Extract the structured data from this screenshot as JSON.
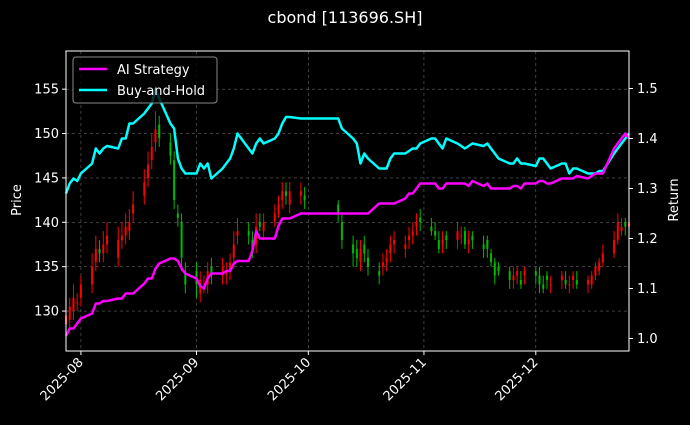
{
  "chart_data": {
    "type": "line",
    "title": "cbond [113696.SH]",
    "ylabel": "Price",
    "y2label": "Return",
    "xlim": [
      "2025-07-28",
      "2025-12-26"
    ],
    "ylim": [
      125.5,
      159.3
    ],
    "y2lim": [
      0.975,
      1.575
    ],
    "x_ticks": [
      "2025-08-01",
      "2025-09-01",
      "2025-10-01",
      "2025-11-01",
      "2025-12-01"
    ],
    "x_tick_labels": [
      "2025-08",
      "2025-09",
      "2025-10",
      "2025-11",
      "2025-12"
    ],
    "y_ticks": [
      130,
      135,
      140,
      145,
      150,
      155
    ],
    "y2_ticks": [
      1.0,
      1.1,
      1.2,
      1.3,
      1.4,
      1.5
    ],
    "y2_tick_labels": [
      "1.0",
      "1.1",
      "1.2",
      "1.3",
      "1.4",
      "1.5"
    ],
    "grid": true,
    "legend_position": "top-left",
    "colors": {
      "background": "#000000",
      "ai_strategy": "#ff00ff",
      "buy_and_hold": "#00ffff",
      "candle_up": "#ff0000",
      "candle_down": "#00bb00",
      "grid": "#666666",
      "text": "#ffffff"
    },
    "series": [
      {
        "name": "AI Strategy",
        "axis": "right",
        "x": [
          "2025-07-28",
          "2025-07-29",
          "2025-07-30",
          "2025-07-31",
          "2025-08-01",
          "2025-08-04",
          "2025-08-05",
          "2025-08-06",
          "2025-08-07",
          "2025-08-08",
          "2025-08-11",
          "2025-08-12",
          "2025-08-13",
          "2025-08-14",
          "2025-08-15",
          "2025-08-18",
          "2025-08-19",
          "2025-08-20",
          "2025-08-21",
          "2025-08-22",
          "2025-08-25",
          "2025-08-26",
          "2025-08-27",
          "2025-08-28",
          "2025-08-29",
          "2025-09-01",
          "2025-09-02",
          "2025-09-03",
          "2025-09-04",
          "2025-09-05",
          "2025-09-08",
          "2025-09-09",
          "2025-09-10",
          "2025-09-11",
          "2025-09-12",
          "2025-09-15",
          "2025-09-16",
          "2025-09-17",
          "2025-09-18",
          "2025-09-19",
          "2025-09-22",
          "2025-09-23",
          "2025-09-24",
          "2025-09-25",
          "2025-09-26",
          "2025-09-29",
          "2025-09-30",
          "2025-10-09",
          "2025-10-10",
          "2025-10-13",
          "2025-10-14",
          "2025-10-15",
          "2025-10-16",
          "2025-10-17",
          "2025-10-20",
          "2025-10-21",
          "2025-10-22",
          "2025-10-23",
          "2025-10-24",
          "2025-10-27",
          "2025-10-28",
          "2025-10-29",
          "2025-10-30",
          "2025-10-31",
          "2025-11-03",
          "2025-11-04",
          "2025-11-05",
          "2025-11-06",
          "2025-11-07",
          "2025-11-10",
          "2025-11-11",
          "2025-11-12",
          "2025-11-13",
          "2025-11-14",
          "2025-11-17",
          "2025-11-18",
          "2025-11-19",
          "2025-11-20",
          "2025-11-21",
          "2025-11-24",
          "2025-11-25",
          "2025-11-26",
          "2025-11-27",
          "2025-11-28",
          "2025-12-01",
          "2025-12-02",
          "2025-12-03",
          "2025-12-04",
          "2025-12-05",
          "2025-12-08",
          "2025-12-09",
          "2025-12-10",
          "2025-12-11",
          "2025-12-12",
          "2025-12-15",
          "2025-12-16",
          "2025-12-17",
          "2025-12-18",
          "2025-12-19",
          "2025-12-22",
          "2025-12-23",
          "2025-12-24",
          "2025-12-25",
          "2025-12-26"
        ],
        "values": [
          1.005,
          1.02,
          1.02,
          1.03,
          1.04,
          1.05,
          1.07,
          1.07,
          1.075,
          1.075,
          1.08,
          1.08,
          1.09,
          1.09,
          1.09,
          1.11,
          1.12,
          1.12,
          1.14,
          1.15,
          1.16,
          1.16,
          1.155,
          1.14,
          1.13,
          1.12,
          1.105,
          1.1,
          1.12,
          1.13,
          1.13,
          1.135,
          1.135,
          1.15,
          1.155,
          1.155,
          1.175,
          1.215,
          1.2,
          1.2,
          1.2,
          1.225,
          1.24,
          1.24,
          1.24,
          1.25,
          1.25,
          1.25,
          1.25,
          1.25,
          1.25,
          1.25,
          1.25,
          1.25,
          1.27,
          1.27,
          1.27,
          1.27,
          1.27,
          1.28,
          1.29,
          1.29,
          1.3,
          1.31,
          1.31,
          1.31,
          1.3,
          1.3,
          1.31,
          1.31,
          1.31,
          1.31,
          1.305,
          1.315,
          1.305,
          1.31,
          1.3,
          1.3,
          1.3,
          1.3,
          1.305,
          1.305,
          1.3,
          1.31,
          1.31,
          1.315,
          1.315,
          1.31,
          1.31,
          1.32,
          1.32,
          1.32,
          1.32,
          1.325,
          1.32,
          1.325,
          1.33,
          1.33,
          1.33,
          1.38,
          1.39,
          1.4,
          1.41,
          1.4
        ]
      },
      {
        "name": "Buy-and-Hold",
        "axis": "right",
        "x": [
          "2025-07-28",
          "2025-07-29",
          "2025-07-30",
          "2025-07-31",
          "2025-08-01",
          "2025-08-04",
          "2025-08-05",
          "2025-08-06",
          "2025-08-07",
          "2025-08-08",
          "2025-08-11",
          "2025-08-12",
          "2025-08-13",
          "2025-08-14",
          "2025-08-15",
          "2025-08-18",
          "2025-08-19",
          "2025-08-20",
          "2025-08-21",
          "2025-08-22",
          "2025-08-25",
          "2025-08-26",
          "2025-08-27",
          "2025-08-28",
          "2025-08-29",
          "2025-09-01",
          "2025-09-02",
          "2025-09-03",
          "2025-09-04",
          "2025-09-05",
          "2025-09-08",
          "2025-09-09",
          "2025-09-10",
          "2025-09-11",
          "2025-09-12",
          "2025-09-15",
          "2025-09-16",
          "2025-09-17",
          "2025-09-18",
          "2025-09-19",
          "2025-09-22",
          "2025-09-23",
          "2025-09-24",
          "2025-09-25",
          "2025-09-26",
          "2025-09-29",
          "2025-09-30",
          "2025-10-09",
          "2025-10-10",
          "2025-10-13",
          "2025-10-14",
          "2025-10-15",
          "2025-10-16",
          "2025-10-17",
          "2025-10-20",
          "2025-10-21",
          "2025-10-22",
          "2025-10-23",
          "2025-10-24",
          "2025-10-27",
          "2025-10-28",
          "2025-10-29",
          "2025-10-30",
          "2025-10-31",
          "2025-11-03",
          "2025-11-04",
          "2025-11-05",
          "2025-11-06",
          "2025-11-07",
          "2025-11-10",
          "2025-11-11",
          "2025-11-12",
          "2025-11-13",
          "2025-11-14",
          "2025-11-17",
          "2025-11-18",
          "2025-11-19",
          "2025-11-20",
          "2025-11-21",
          "2025-11-24",
          "2025-11-25",
          "2025-11-26",
          "2025-11-27",
          "2025-11-28",
          "2025-12-01",
          "2025-12-02",
          "2025-12-03",
          "2025-12-04",
          "2025-12-05",
          "2025-12-08",
          "2025-12-09",
          "2025-12-10",
          "2025-12-11",
          "2025-12-12",
          "2025-12-15",
          "2025-12-16",
          "2025-12-17",
          "2025-12-18",
          "2025-12-19",
          "2025-12-22",
          "2025-12-23",
          "2025-12-24",
          "2025-12-25",
          "2025-12-26"
        ],
        "values": [
          1.29,
          1.31,
          1.32,
          1.315,
          1.33,
          1.35,
          1.38,
          1.37,
          1.38,
          1.385,
          1.38,
          1.4,
          1.4,
          1.43,
          1.43,
          1.45,
          1.46,
          1.47,
          1.5,
          1.48,
          1.43,
          1.42,
          1.36,
          1.34,
          1.33,
          1.33,
          1.35,
          1.34,
          1.35,
          1.32,
          1.34,
          1.35,
          1.36,
          1.38,
          1.41,
          1.38,
          1.37,
          1.39,
          1.4,
          1.39,
          1.4,
          1.41,
          1.43,
          1.443,
          1.443,
          1.44,
          1.44,
          1.44,
          1.42,
          1.4,
          1.39,
          1.35,
          1.37,
          1.36,
          1.34,
          1.34,
          1.34,
          1.36,
          1.37,
          1.37,
          1.375,
          1.38,
          1.38,
          1.39,
          1.4,
          1.4,
          1.39,
          1.38,
          1.4,
          1.39,
          1.385,
          1.38,
          1.385,
          1.39,
          1.385,
          1.39,
          1.38,
          1.37,
          1.36,
          1.35,
          1.35,
          1.36,
          1.35,
          1.35,
          1.345,
          1.36,
          1.36,
          1.35,
          1.34,
          1.35,
          1.35,
          1.33,
          1.34,
          1.34,
          1.33,
          1.33,
          1.33,
          1.335,
          1.335,
          1.37,
          1.38,
          1.39,
          1.4,
          1.41
        ]
      }
    ],
    "candles": {
      "axis": "left",
      "dates": [
        "2025-07-28",
        "2025-07-29",
        "2025-07-30",
        "2025-07-31",
        "2025-08-01",
        "2025-08-04",
        "2025-08-05",
        "2025-08-06",
        "2025-08-07",
        "2025-08-08",
        "2025-08-11",
        "2025-08-12",
        "2025-08-13",
        "2025-08-14",
        "2025-08-15",
        "2025-08-18",
        "2025-08-19",
        "2025-08-20",
        "2025-08-21",
        "2025-08-22",
        "2025-08-25",
        "2025-08-26",
        "2025-08-27",
        "2025-08-28",
        "2025-08-29",
        "2025-09-01",
        "2025-09-02",
        "2025-09-03",
        "2025-09-04",
        "2025-09-05",
        "2025-09-08",
        "2025-09-09",
        "2025-09-10",
        "2025-09-11",
        "2025-09-12",
        "2025-09-15",
        "2025-09-16",
        "2025-09-17",
        "2025-09-18",
        "2025-09-19",
        "2025-09-22",
        "2025-09-23",
        "2025-09-24",
        "2025-09-25",
        "2025-09-26",
        "2025-09-29",
        "2025-09-30",
        "2025-10-09",
        "2025-10-10",
        "2025-10-13",
        "2025-10-14",
        "2025-10-15",
        "2025-10-16",
        "2025-10-17",
        "2025-10-20",
        "2025-10-21",
        "2025-10-22",
        "2025-10-23",
        "2025-10-24",
        "2025-10-27",
        "2025-10-28",
        "2025-10-29",
        "2025-10-30",
        "2025-10-31",
        "2025-11-03",
        "2025-11-04",
        "2025-11-05",
        "2025-11-06",
        "2025-11-07",
        "2025-11-10",
        "2025-11-11",
        "2025-11-12",
        "2025-11-13",
        "2025-11-14",
        "2025-11-17",
        "2025-11-18",
        "2025-11-19",
        "2025-11-20",
        "2025-11-21",
        "2025-11-24",
        "2025-11-25",
        "2025-11-26",
        "2025-11-27",
        "2025-11-28",
        "2025-12-01",
        "2025-12-02",
        "2025-12-03",
        "2025-12-04",
        "2025-12-05",
        "2025-12-08",
        "2025-12-09",
        "2025-12-10",
        "2025-12-11",
        "2025-12-12",
        "2025-12-15",
        "2025-12-16",
        "2025-12-17",
        "2025-12-18",
        "2025-12-19",
        "2025-12-22",
        "2025-12-23",
        "2025-12-24",
        "2025-12-25",
        "2025-12-26"
      ],
      "open": [
        128.5,
        129.0,
        130.0,
        131.0,
        131.5,
        133.0,
        135.5,
        137.0,
        136.5,
        137.5,
        136.0,
        138.0,
        138.5,
        139.0,
        141.0,
        143.0,
        145.0,
        147.0,
        149.0,
        151.0,
        149.0,
        147.0,
        141.0,
        140.0,
        134.5,
        134.5,
        132.0,
        133.0,
        133.0,
        135.0,
        134.0,
        134.0,
        134.5,
        136.0,
        138.5,
        139.0,
        138.0,
        137.5,
        140.0,
        139.0,
        140.0,
        141.0,
        142.5,
        143.5,
        142.0,
        143.0,
        143.0,
        142.0,
        140.0,
        137.5,
        137.0,
        135.5,
        137.5,
        136.0,
        134.5,
        135.0,
        135.5,
        136.5,
        137.5,
        137.0,
        138.0,
        138.5,
        139.5,
        140.5,
        139.5,
        139.0,
        138.0,
        137.5,
        138.5,
        138.0,
        138.5,
        139.0,
        137.5,
        138.5,
        137.5,
        138.0,
        136.5,
        135.5,
        135.0,
        134.5,
        133.5,
        134.0,
        133.5,
        134.0,
        134.5,
        134.0,
        133.0,
        134.0,
        133.0,
        133.5,
        133.5,
        133.0,
        133.5,
        133.5,
        133.0,
        133.0,
        134.0,
        134.5,
        135.5,
        136.5,
        138.0,
        139.0,
        140.0,
        139.5
      ],
      "close": [
        129.5,
        130.5,
        131.5,
        131.0,
        133.0,
        135.0,
        137.0,
        136.5,
        137.5,
        138.5,
        138.0,
        138.5,
        139.5,
        140.0,
        142.0,
        144.5,
        146.5,
        148.5,
        150.5,
        149.5,
        147.5,
        142.5,
        140.5,
        136.0,
        133.0,
        133.0,
        133.5,
        133.0,
        134.5,
        134.0,
        135.0,
        134.5,
        135.5,
        137.5,
        139.0,
        138.5,
        137.0,
        139.5,
        139.5,
        140.0,
        141.0,
        142.0,
        143.5,
        143.0,
        143.5,
        143.5,
        142.5,
        141.0,
        138.0,
        136.5,
        136.0,
        137.0,
        136.5,
        135.0,
        134.0,
        135.5,
        136.0,
        137.5,
        138.0,
        137.5,
        138.5,
        139.0,
        140.0,
        140.0,
        139.0,
        138.5,
        137.0,
        138.0,
        138.0,
        139.0,
        138.5,
        137.5,
        138.0,
        138.0,
        137.0,
        137.0,
        135.5,
        134.0,
        134.5,
        133.5,
        134.0,
        134.5,
        133.0,
        134.5,
        134.0,
        133.0,
        132.5,
        133.5,
        133.0,
        134.0,
        133.0,
        133.0,
        134.0,
        133.0,
        133.5,
        134.0,
        135.0,
        135.5,
        136.5,
        138.0,
        140.0,
        139.5,
        139.5,
        140.0
      ],
      "high": [
        130.5,
        131.5,
        133.0,
        132.0,
        134.0,
        136.5,
        138.5,
        138.0,
        139.0,
        140.0,
        139.5,
        140.0,
        141.0,
        141.5,
        143.5,
        146.0,
        148.0,
        150.0,
        152.5,
        152.0,
        150.0,
        148.0,
        142.0,
        141.0,
        135.5,
        135.5,
        134.5,
        134.0,
        135.5,
        136.0,
        136.0,
        135.5,
        136.5,
        139.0,
        140.5,
        140.0,
        139.0,
        141.0,
        141.0,
        141.0,
        142.0,
        143.0,
        144.5,
        144.5,
        144.5,
        144.5,
        144.0,
        142.5,
        141.0,
        138.5,
        138.0,
        138.0,
        138.5,
        137.0,
        135.5,
        136.5,
        137.0,
        138.5,
        139.0,
        138.5,
        139.5,
        140.0,
        141.0,
        141.5,
        140.5,
        140.0,
        139.0,
        139.0,
        139.0,
        140.0,
        139.5,
        139.5,
        139.0,
        139.0,
        138.5,
        138.5,
        137.0,
        136.0,
        135.5,
        135.0,
        135.0,
        135.0,
        134.5,
        135.0,
        135.0,
        135.0,
        134.0,
        134.5,
        134.0,
        134.5,
        134.5,
        134.0,
        134.5,
        134.5,
        134.0,
        134.5,
        135.5,
        136.0,
        137.5,
        139.0,
        141.0,
        140.5,
        140.5,
        141.0
      ],
      "low": [
        127.5,
        128.0,
        129.0,
        130.0,
        130.5,
        132.0,
        134.5,
        135.5,
        135.5,
        136.5,
        135.0,
        137.0,
        137.5,
        138.0,
        140.0,
        142.0,
        144.0,
        146.0,
        148.0,
        148.5,
        146.5,
        141.5,
        139.5,
        134.5,
        132.0,
        131.5,
        131.0,
        132.0,
        132.0,
        133.0,
        133.0,
        133.0,
        133.5,
        135.0,
        137.5,
        137.5,
        136.0,
        136.5,
        139.0,
        138.0,
        139.5,
        140.5,
        141.5,
        142.0,
        141.0,
        142.0,
        141.5,
        140.0,
        137.0,
        135.0,
        135.0,
        134.5,
        135.5,
        134.0,
        133.0,
        134.0,
        134.5,
        135.5,
        136.5,
        136.0,
        137.0,
        137.5,
        138.5,
        139.0,
        138.5,
        138.0,
        136.5,
        136.5,
        137.0,
        137.0,
        137.5,
        137.0,
        136.5,
        137.0,
        136.0,
        136.0,
        135.0,
        133.0,
        134.0,
        132.5,
        132.5,
        133.0,
        132.5,
        133.0,
        133.0,
        132.0,
        132.0,
        132.5,
        132.0,
        132.5,
        132.5,
        132.0,
        132.5,
        132.5,
        132.0,
        132.5,
        133.5,
        134.0,
        135.0,
        136.0,
        137.5,
        138.5,
        138.5,
        139.0
      ]
    }
  },
  "legend": {
    "items": [
      {
        "label": "AI Strategy",
        "color": "#ff00ff"
      },
      {
        "label": "Buy-and-Hold",
        "color": "#00ffff"
      }
    ]
  }
}
